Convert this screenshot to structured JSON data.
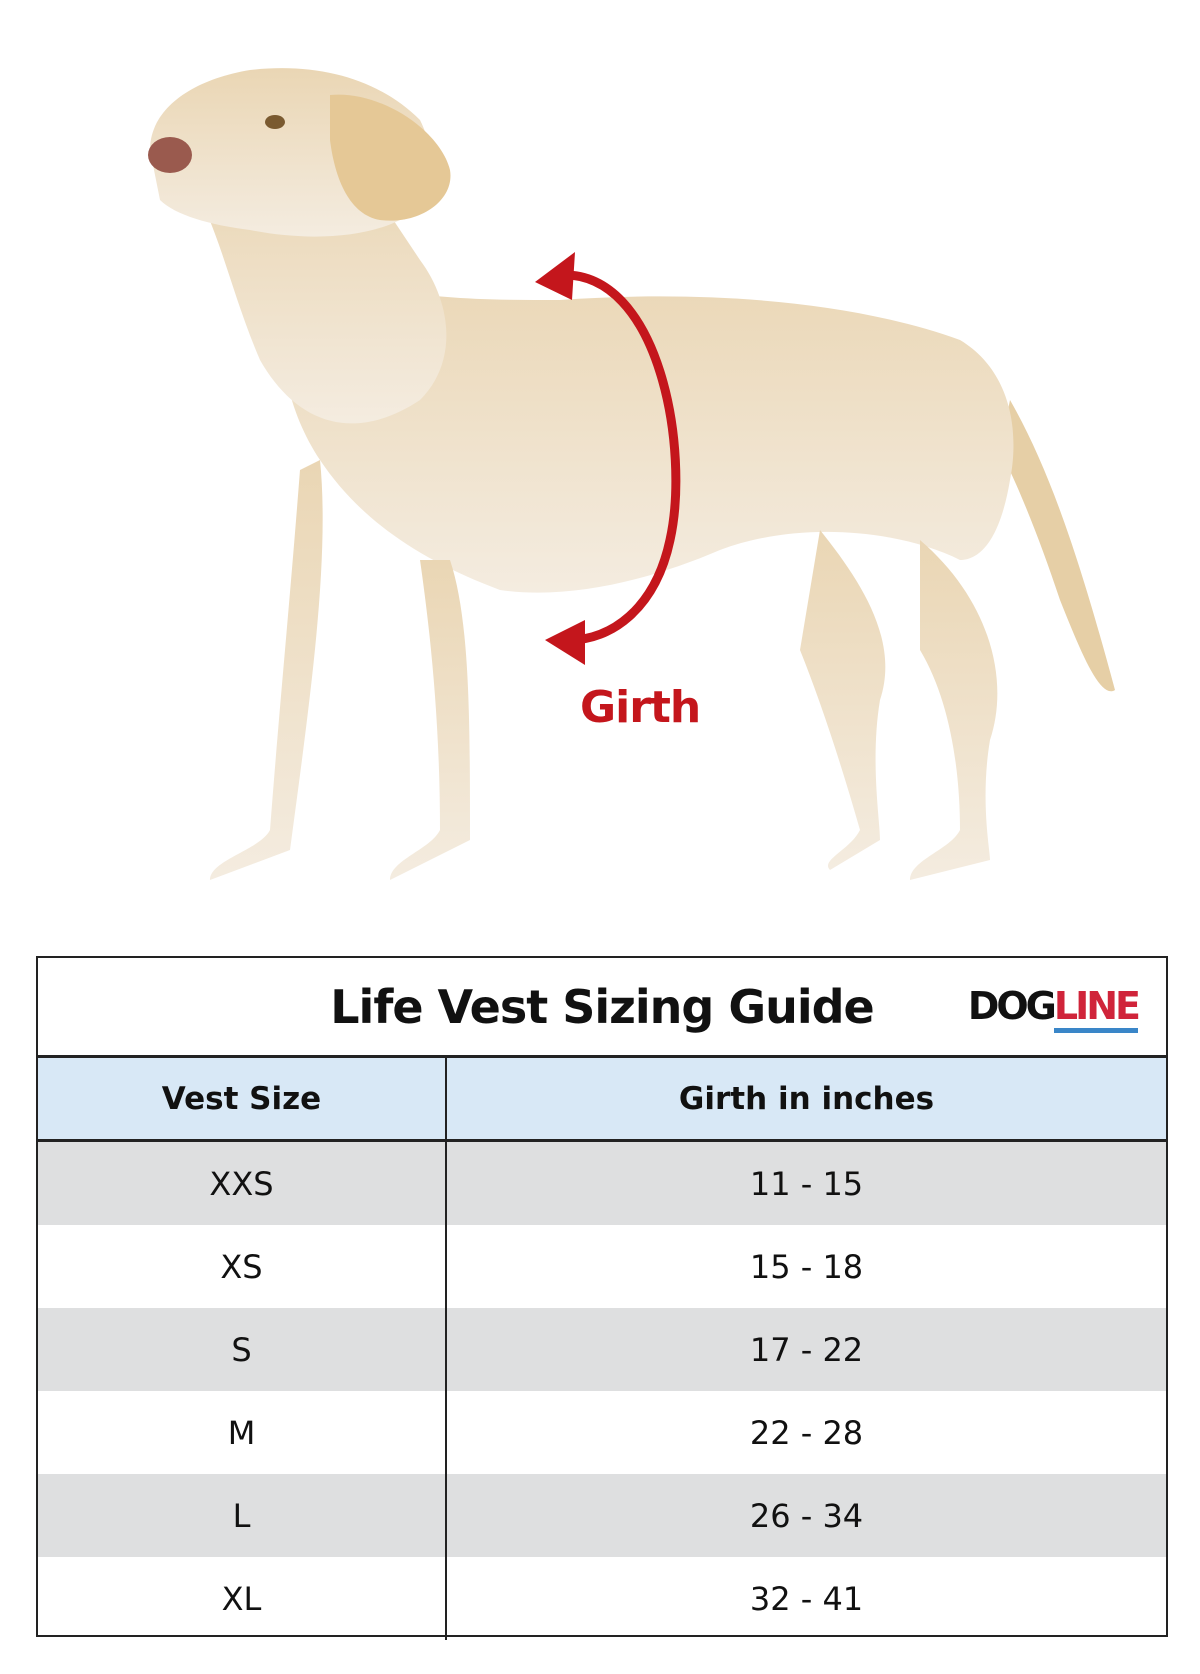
{
  "image": {
    "subject": "dog-standing-side-view",
    "girth_label": "Girth",
    "arrow_color": "#c4161c"
  },
  "table": {
    "title": "Life Vest Sizing Guide",
    "logo": {
      "part1": "DOG",
      "part2": "LINE"
    },
    "headers": [
      "Vest Size",
      "Girth in inches"
    ],
    "header_bg": "#d8e8f6",
    "rows": [
      {
        "size": "XXS",
        "girth": "11 - 15"
      },
      {
        "size": "XS",
        "girth": "15 - 18"
      },
      {
        "size": "S",
        "girth": "17 - 22"
      },
      {
        "size": "M",
        "girth": "22 - 28"
      },
      {
        "size": "L",
        "girth": "26 - 34"
      },
      {
        "size": "XL",
        "girth": "32 - 41"
      }
    ]
  }
}
